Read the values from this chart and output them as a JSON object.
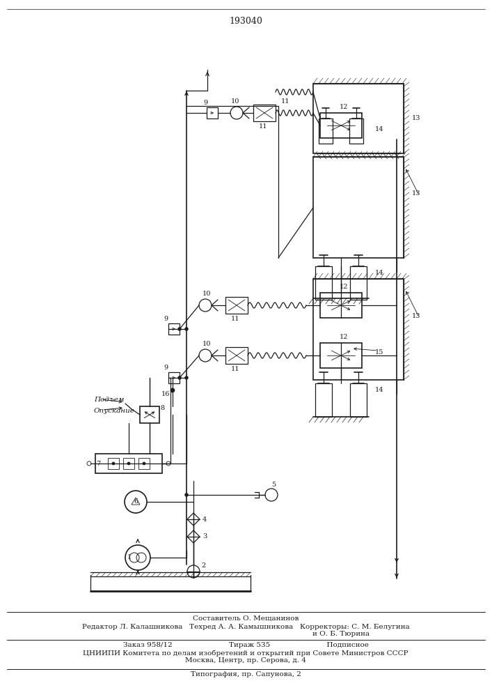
{
  "title": "193040",
  "bg_color": "#ffffff",
  "line_color": "#1a1a1a",
  "text_color": "#1a1a1a",
  "footer": {
    "line1": "Составитель О. Мещанинов",
    "line2": "Редактор Л. Калашникова   Техред А. А. Камышникова   Корректоры: С. М. Белугина",
    "line3": "и О. Б. Тюрина",
    "line4": "Заказ 958/12                         Тираж 535                         Подписное",
    "line5": "ЦНИИПИ Комитета по делам изобретений и открытий при Совете Министров СССР",
    "line6": "Москва, Центр, пр. Серова, д. 4",
    "line7": "Типография, пр. Сапунова, 2"
  }
}
